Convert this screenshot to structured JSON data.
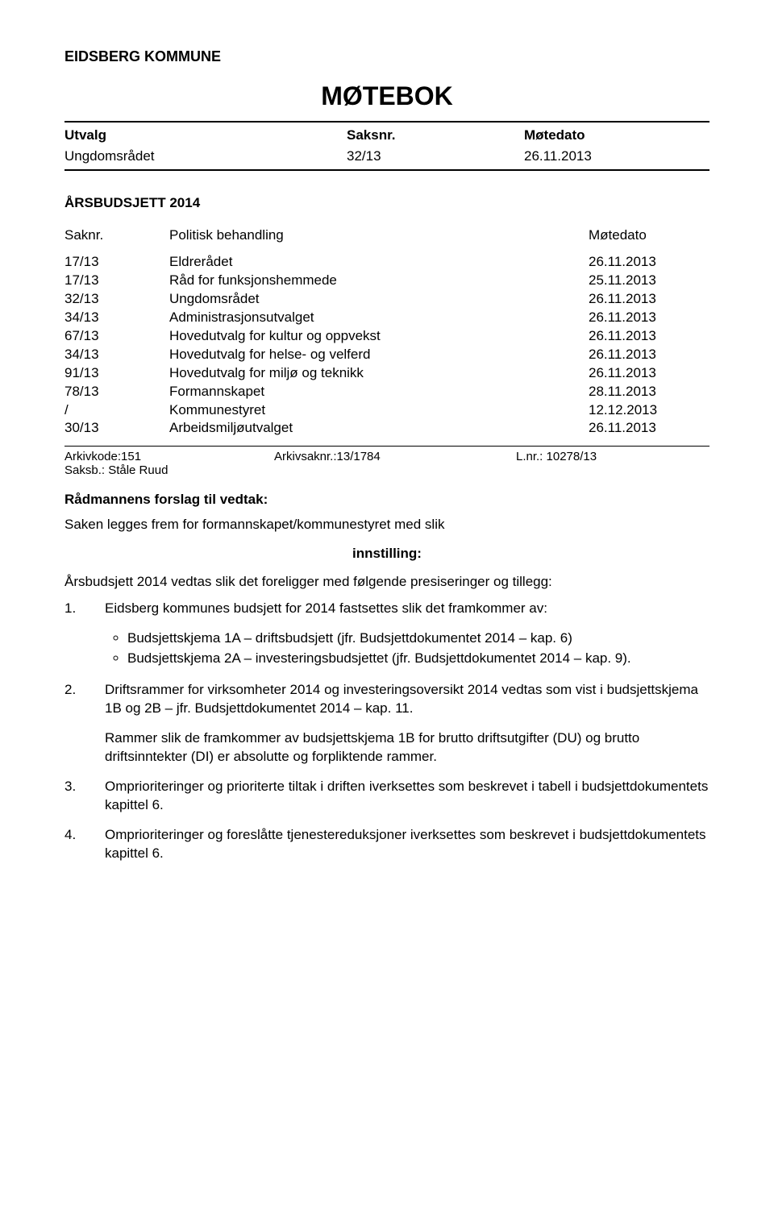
{
  "header": {
    "org": "EIDSBERG KOMMUNE",
    "title": "MØTEBOK"
  },
  "meta": {
    "labels": {
      "utvalg": "Utvalg",
      "saksnr": "Saksnr.",
      "motedato": "Møtedato"
    },
    "values": {
      "utvalg": "Ungdomsrådet",
      "saksnr": "32/13",
      "motedato": "26.11.2013"
    }
  },
  "section_title": "ÅRSBUDSJETT 2014",
  "pb": {
    "header": {
      "c1": "Saknr.",
      "c2": "Politisk behandling",
      "c3": "Møtedato"
    },
    "rows": [
      {
        "c1": "17/13",
        "c2": "Eldrerådet",
        "c3": "26.11.2013"
      },
      {
        "c1": "17/13",
        "c2": "Råd for funksjonshemmede",
        "c3": "25.11.2013"
      },
      {
        "c1": "32/13",
        "c2": "Ungdomsrådet",
        "c3": "26.11.2013"
      },
      {
        "c1": "34/13",
        "c2": "Administrasjonsutvalget",
        "c3": "26.11.2013"
      },
      {
        "c1": "67/13",
        "c2": "Hovedutvalg for kultur og oppvekst",
        "c3": "26.11.2013"
      },
      {
        "c1": "34/13",
        "c2": "Hovedutvalg for helse- og velferd",
        "c3": "26.11.2013"
      },
      {
        "c1": "91/13",
        "c2": "Hovedutvalg for miljø og teknikk",
        "c3": "26.11.2013"
      },
      {
        "c1": "78/13",
        "c2": "Formannskapet",
        "c3": "28.11.2013"
      },
      {
        "c1": "/",
        "c2": "Kommunestyret",
        "c3": "12.12.2013"
      },
      {
        "c1": "30/13",
        "c2": "Arbeidsmiljøutvalget",
        "c3": "26.11.2013"
      }
    ]
  },
  "arkiv": {
    "kode": "Arkivkode:151",
    "saknr": "Arkivsaknr.:13/1784",
    "lnr": "L.nr.: 10278/13",
    "saksb": "Saksb.: Ståle Ruud"
  },
  "forslag_title": "Rådmannens forslag til vedtak:",
  "forslag_intro": "Saken legges frem for formannskapet/kommunestyret med slik",
  "innstilling_label": "innstilling:",
  "innstilling_intro": "Årsbudsjett 2014 vedtas slik det foreligger med følgende presiseringer og tillegg:",
  "items": [
    {
      "num": "1.",
      "text": "Eidsberg kommunes budsjett for 2014 fastsettes slik det framkommer av:",
      "bullets": [
        "Budsjettskjema 1A – driftsbudsjett (jfr. Budsjettdokumentet 2014 – kap. 6)",
        "Budsjettskjema 2A – investeringsbudsjettet (jfr. Budsjettdokumentet 2014 – kap. 9)."
      ]
    },
    {
      "num": "2.",
      "text": "Driftsrammer for virksomheter 2014 og investeringsoversikt 2014 vedtas som vist i budsjettskjema 1B og 2B – jfr. Budsjettdokumentet 2014 – kap. 11.",
      "sub": "Rammer slik de framkommer av budsjettskjema 1B for brutto driftsutgifter (DU) og brutto driftsinntekter (DI) er absolutte og forpliktende rammer."
    },
    {
      "num": "3.",
      "text": "Omprioriteringer og prioriterte tiltak i driften iverksettes som beskrevet i tabell i budsjettdokumentets kapittel 6."
    },
    {
      "num": "4.",
      "text": "Omprioriteringer og foreslåtte tjenestereduksjoner iverksettes som beskrevet i budsjettdokumentets kapittel 6."
    }
  ]
}
